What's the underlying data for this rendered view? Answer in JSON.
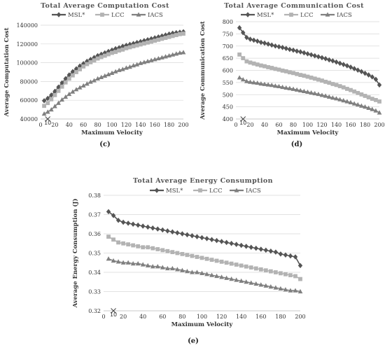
{
  "colors": [
    "#555555",
    "#b3b3b3",
    "#808080"
  ],
  "legend_labels": [
    "MSL*",
    "LCC",
    "IACS"
  ],
  "markers": [
    "diamond",
    "square",
    "triangle"
  ],
  "chart_data": [
    {
      "type": "line",
      "title": "Total Average Computation Cost",
      "xlabel": "Maximum Velocity",
      "ylabel": "Average Computation Cost",
      "caption": "(c)",
      "xlim": [
        0,
        200
      ],
      "ylim": [
        40000,
        140000
      ],
      "xticks": [
        0,
        20,
        40,
        60,
        80,
        100,
        120,
        140,
        160,
        180,
        200
      ],
      "yticks": [
        40000,
        60000,
        80000,
        100000,
        120000,
        140000
      ],
      "grid": "horizontal",
      "legend_position": "top",
      "annotation": {
        "text": "10",
        "x": 10
      },
      "x": [
        5,
        10,
        15,
        20,
        25,
        30,
        35,
        40,
        45,
        50,
        55,
        60,
        65,
        70,
        75,
        80,
        85,
        90,
        95,
        100,
        105,
        110,
        115,
        120,
        125,
        130,
        135,
        140,
        145,
        150,
        155,
        160,
        165,
        170,
        175,
        180,
        185,
        190,
        195,
        200
      ],
      "series": [
        {
          "name": "MSL*",
          "values": [
            59500,
            62000,
            65500,
            69500,
            74000,
            78500,
            83000,
            87000,
            90500,
            93500,
            96500,
            99000,
            101500,
            103500,
            105500,
            107500,
            109000,
            110500,
            112000,
            113500,
            115000,
            116000,
            117500,
            118500,
            119500,
            120500,
            121500,
            122500,
            123500,
            124500,
            125500,
            126500,
            127500,
            128500,
            129500,
            130500,
            131500,
            132000,
            132500,
            133000
          ]
        },
        {
          "name": "LCC",
          "values": [
            54000,
            57000,
            61000,
            65500,
            70000,
            74500,
            79000,
            83000,
            86500,
            90000,
            93000,
            96000,
            98500,
            100500,
            102500,
            104500,
            106000,
            107500,
            109000,
            110500,
            111500,
            113000,
            114000,
            115500,
            116500,
            117500,
            118500,
            119500,
            120500,
            121500,
            122500,
            123500,
            124500,
            125500,
            126500,
            127500,
            128500,
            129500,
            130500,
            131000
          ]
        },
        {
          "name": "IACS",
          "values": [
            45500,
            47500,
            50000,
            53500,
            57000,
            60500,
            63500,
            66500,
            69000,
            71500,
            73500,
            75500,
            77500,
            79500,
            81000,
            83000,
            84500,
            86000,
            87500,
            89000,
            90500,
            92000,
            93000,
            94500,
            95500,
            97000,
            98000,
            99500,
            100500,
            101500,
            102500,
            103500,
            104500,
            105500,
            106500,
            107500,
            108500,
            109500,
            110500,
            111000
          ]
        }
      ]
    },
    {
      "type": "line",
      "title": "Total Average Communication Cost",
      "xlabel": "Maximum Velocity",
      "ylabel": "Average Communication Cost",
      "caption": "(d)",
      "xlim": [
        0,
        200
      ],
      "ylim": [
        400,
        800
      ],
      "xticks": [
        0,
        20,
        40,
        60,
        80,
        100,
        120,
        140,
        160,
        180,
        200
      ],
      "yticks": [
        400,
        450,
        500,
        550,
        600,
        650,
        700,
        750,
        800
      ],
      "grid": "horizontal",
      "legend_position": "top",
      "annotation": {
        "text": "10",
        "x": 10
      },
      "x": [
        5,
        10,
        15,
        20,
        25,
        30,
        35,
        40,
        45,
        50,
        55,
        60,
        65,
        70,
        75,
        80,
        85,
        90,
        95,
        100,
        105,
        110,
        115,
        120,
        125,
        130,
        135,
        140,
        145,
        150,
        155,
        160,
        165,
        170,
        175,
        180,
        185,
        190,
        195,
        200
      ],
      "series": [
        {
          "name": "MSL*",
          "values": [
            775,
            755,
            735,
            728,
            724,
            720,
            715,
            712,
            708,
            704,
            700,
            697,
            694,
            690,
            686,
            683,
            679,
            676,
            672,
            668,
            664,
            660,
            656,
            652,
            648,
            643,
            639,
            634,
            629,
            624,
            619,
            613,
            607,
            601,
            595,
            588,
            581,
            573,
            563,
            540
          ]
        },
        {
          "name": "LCC",
          "values": [
            665,
            650,
            637,
            632,
            628,
            624,
            620,
            617,
            613,
            610,
            606,
            603,
            599,
            596,
            592,
            589,
            585,
            581,
            578,
            574,
            570,
            566,
            562,
            558,
            553,
            549,
            544,
            540,
            535,
            530,
            524,
            519,
            513,
            507,
            501,
            495,
            489,
            483,
            478,
            472
          ]
        },
        {
          "name": "IACS",
          "values": [
            570,
            562,
            555,
            552,
            550,
            548,
            545,
            543,
            541,
            539,
            536,
            534,
            531,
            528,
            526,
            523,
            520,
            517,
            514,
            511,
            508,
            505,
            502,
            498,
            495,
            491,
            487,
            484,
            480,
            476,
            472,
            468,
            463,
            459,
            454,
            450,
            445,
            440,
            434,
            426
          ]
        }
      ]
    },
    {
      "type": "line",
      "title": "Total Average Energy Consumption",
      "xlabel": "Maximum Velocity",
      "ylabel": "Average Energy Consumption (J)",
      "caption": "(e)",
      "xlim": [
        0,
        200
      ],
      "ylim": [
        0.32,
        0.38
      ],
      "xticks": [
        0,
        20,
        40,
        60,
        80,
        100,
        120,
        140,
        160,
        180,
        200
      ],
      "yticks": [
        0.32,
        0.33,
        0.34,
        0.35,
        0.36,
        0.37,
        0.38
      ],
      "grid": "horizontal",
      "legend_position": "top",
      "annotation": {
        "text": "10",
        "x": 10
      },
      "x": [
        5,
        10,
        15,
        20,
        25,
        30,
        35,
        40,
        45,
        50,
        55,
        60,
        65,
        70,
        75,
        80,
        85,
        90,
        95,
        100,
        105,
        110,
        115,
        120,
        125,
        130,
        135,
        140,
        145,
        150,
        155,
        160,
        165,
        170,
        175,
        180,
        185,
        190,
        195,
        200
      ],
      "series": [
        {
          "name": "MSL*",
          "values": [
            0.3715,
            0.3695,
            0.367,
            0.366,
            0.3655,
            0.365,
            0.3645,
            0.364,
            0.3635,
            0.363,
            0.3625,
            0.362,
            0.3615,
            0.361,
            0.3605,
            0.36,
            0.3595,
            0.359,
            0.3585,
            0.358,
            0.3575,
            0.357,
            0.3565,
            0.356,
            0.3555,
            0.355,
            0.3545,
            0.354,
            0.3535,
            0.353,
            0.3525,
            0.352,
            0.3515,
            0.351,
            0.3505,
            0.3495,
            0.349,
            0.3485,
            0.348,
            0.3435
          ]
        },
        {
          "name": "LCC",
          "values": [
            0.3585,
            0.357,
            0.3555,
            0.355,
            0.3545,
            0.354,
            0.3535,
            0.353,
            0.353,
            0.3525,
            0.352,
            0.3515,
            0.351,
            0.3505,
            0.35,
            0.3495,
            0.349,
            0.3485,
            0.348,
            0.3475,
            0.347,
            0.3465,
            0.346,
            0.3455,
            0.345,
            0.3445,
            0.344,
            0.3435,
            0.343,
            0.3425,
            0.342,
            0.3415,
            0.341,
            0.3405,
            0.34,
            0.3395,
            0.339,
            0.3385,
            0.338,
            0.3365
          ]
        },
        {
          "name": "IACS",
          "values": [
            0.347,
            0.346,
            0.3455,
            0.345,
            0.345,
            0.3445,
            0.3445,
            0.344,
            0.3435,
            0.343,
            0.343,
            0.3425,
            0.342,
            0.342,
            0.3415,
            0.341,
            0.3405,
            0.34,
            0.34,
            0.3395,
            0.339,
            0.3385,
            0.338,
            0.3375,
            0.337,
            0.3365,
            0.336,
            0.3355,
            0.335,
            0.3345,
            0.334,
            0.3335,
            0.333,
            0.3325,
            0.332,
            0.3315,
            0.331,
            0.3305,
            0.3305,
            0.33
          ]
        }
      ]
    }
  ]
}
